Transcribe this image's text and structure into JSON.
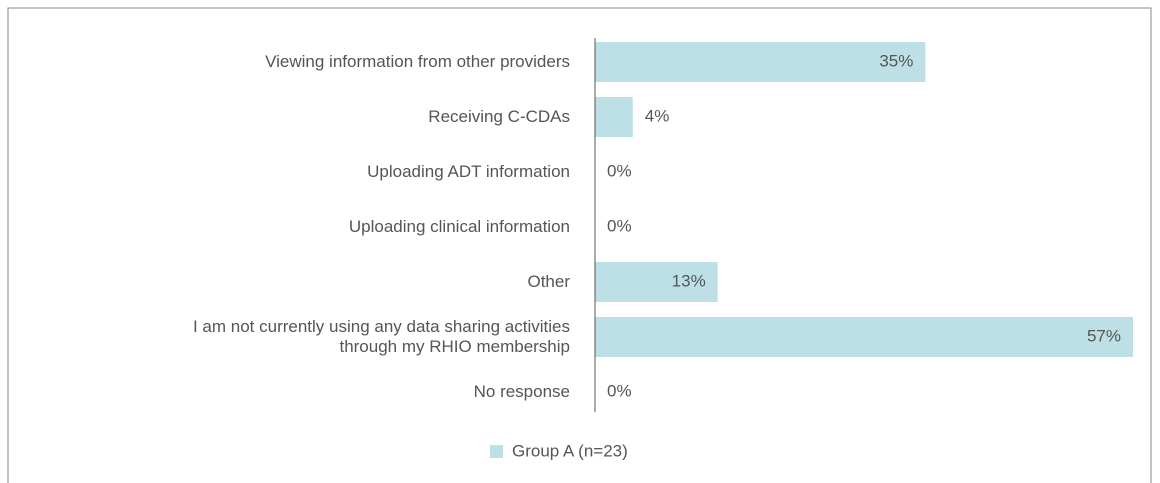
{
  "chart_data": {
    "type": "barh",
    "categories": [
      "Viewing information from other providers",
      "Receiving C-CDAs",
      "Uploading ADT information",
      "Uploading clinical information",
      "Other",
      "I am not currently using any data sharing activities\nthrough my RHIO membership",
      "No response"
    ],
    "series": [
      {
        "name": "Group A (n=23)",
        "color": "#bde0e6",
        "values": [
          35,
          4,
          0,
          0,
          13,
          57,
          0
        ],
        "value_labels": [
          "35%",
          "4%",
          "0%",
          "0%",
          "13%",
          "57%",
          "0%"
        ]
      }
    ],
    "xlim": [
      0,
      57
    ],
    "legend": "bottom"
  }
}
